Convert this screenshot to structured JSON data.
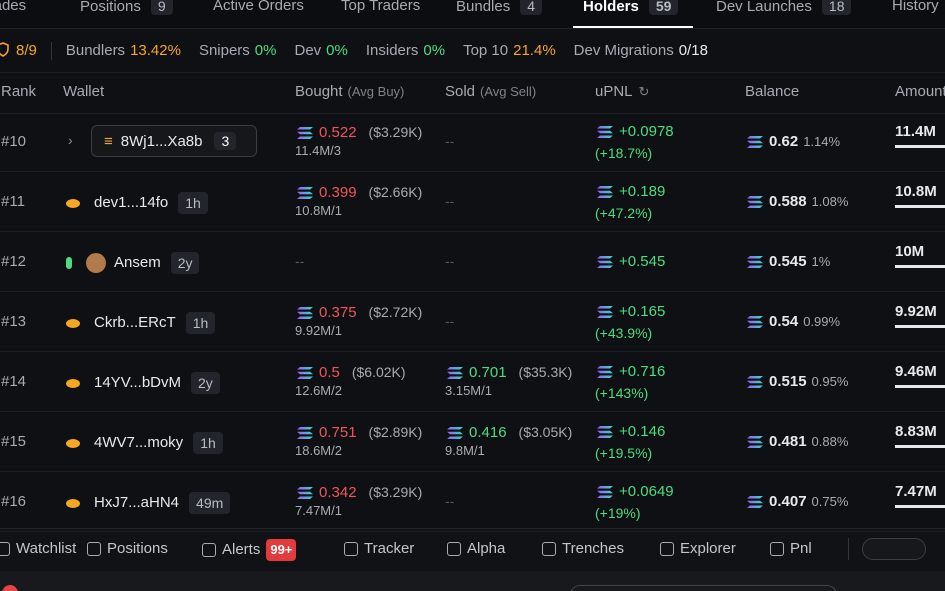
{
  "tabs": [
    {
      "label": "Trades"
    },
    {
      "label": "Positions",
      "count": "9"
    },
    {
      "label": "Active Orders"
    },
    {
      "label": "Top Traders"
    },
    {
      "label": "Bundles",
      "count": "4"
    },
    {
      "label": "Holders",
      "count": "59"
    },
    {
      "label": "Dev Launches",
      "count": "18"
    },
    {
      "label": "History"
    }
  ],
  "stats": {
    "holders_ratio": "8/9",
    "items": [
      {
        "label": "Bundlers",
        "value": "13.42%"
      },
      {
        "label": "Snipers",
        "value": "0%"
      },
      {
        "label": "Dev",
        "value": "0%"
      },
      {
        "label": "Insiders",
        "value": "0%"
      },
      {
        "label": "Top 10",
        "value": "21.4%"
      },
      {
        "label": "Dev Migrations",
        "value": "0/18"
      }
    ]
  },
  "table": {
    "headers": {
      "rank": "Rank",
      "wallet": "Wallet",
      "bought": "Bought",
      "bought_sub": "(Avg Buy)",
      "sold": "Sold",
      "sold_sub": "(Avg Sell)",
      "upnl": "uPNL",
      "balance": "Balance",
      "amount": "Amount"
    },
    "rows": [
      {
        "rank": "#10",
        "wallet": "8Wj1...Xa8b",
        "bundle_count": "3",
        "bought": {
          "sol": "0.522",
          "usd": "($3.29K)",
          "tokens": "11.4M/3"
        },
        "sold": "--",
        "upnl": "+0.0978",
        "upnl_pct": "(+18.7%)",
        "balance": "0.62",
        "balance_pct": "1.14%",
        "amount": "11.4M"
      },
      {
        "rank": "#11",
        "wallet": "dev1...14fo",
        "age": "1h",
        "bought": {
          "sol": "0.399",
          "usd": "($2.66K)",
          "tokens": "10.8M/1"
        },
        "sold": "--",
        "upnl": "+0.189",
        "upnl_pct": "(+47.2%)",
        "balance": "0.588",
        "balance_pct": "1.08%",
        "amount": "10.8M"
      },
      {
        "rank": "#12",
        "wallet": "Ansem",
        "age": "2y",
        "bought": "--",
        "sold": "--",
        "upnl": "+0.545",
        "balance": "0.545",
        "balance_pct": "1%",
        "amount": "10M"
      },
      {
        "rank": "#13",
        "wallet": "Ckrb...ERcT",
        "age": "1h",
        "bought": {
          "sol": "0.375",
          "usd": "($2.72K)",
          "tokens": "9.92M/1"
        },
        "sold": "--",
        "upnl": "+0.165",
        "upnl_pct": "(+43.9%)",
        "balance": "0.54",
        "balance_pct": "0.99%",
        "amount": "9.92M"
      },
      {
        "rank": "#14",
        "wallet": "14YV...bDvM",
        "age": "2y",
        "bought": {
          "sol": "0.5",
          "usd": "($6.02K)",
          "tokens": "12.6M/2"
        },
        "sold": {
          "sol": "0.701",
          "usd": "($35.3K)",
          "tokens": "3.15M/1"
        },
        "upnl": "+0.716",
        "upnl_pct": "(+143%)",
        "balance": "0.515",
        "balance_pct": "0.95%",
        "amount": "9.46M"
      },
      {
        "rank": "#15",
        "wallet": "4WV7...moky",
        "age": "1h",
        "bought": {
          "sol": "0.751",
          "usd": "($2.89K)",
          "tokens": "18.6M/2"
        },
        "sold": {
          "sol": "0.416",
          "usd": "($3.05K)",
          "tokens": "9.8M/1"
        },
        "upnl": "+0.146",
        "upnl_pct": "(+19.5%)",
        "balance": "0.481",
        "balance_pct": "0.88%",
        "amount": "8.83M"
      },
      {
        "rank": "#16",
        "wallet": "HxJ7...aHN4",
        "age": "49m",
        "bought": {
          "sol": "0.342",
          "usd": "($3.29K)",
          "tokens": "7.47M/1"
        },
        "sold": "--",
        "upnl": "+0.0649",
        "upnl_pct": "(+19%)",
        "balance": "0.407",
        "balance_pct": "0.75%",
        "amount": "7.47M"
      }
    ]
  },
  "bottom_bar": [
    {
      "label": "Watchlist"
    },
    {
      "label": "Positions"
    },
    {
      "label": "Alerts",
      "badge": "99+"
    },
    {
      "label": "Tracker"
    },
    {
      "label": "Alpha"
    },
    {
      "label": "Trenches"
    },
    {
      "label": "Explorer"
    },
    {
      "label": "Pnl"
    }
  ]
}
